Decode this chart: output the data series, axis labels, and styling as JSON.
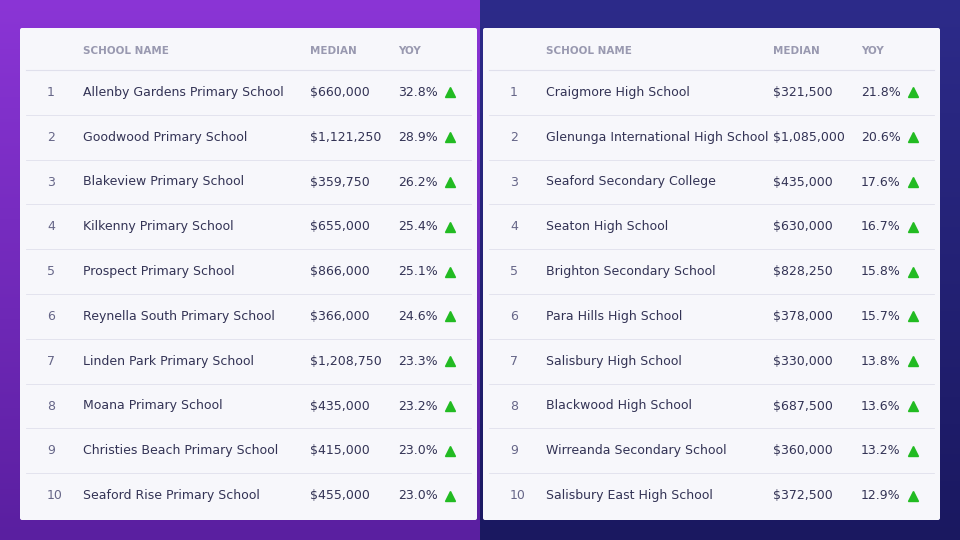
{
  "primary": {
    "ranks": [
      1,
      2,
      3,
      4,
      5,
      6,
      7,
      8,
      9,
      10
    ],
    "names": [
      "Allenby Gardens Primary School",
      "Goodwood Primary School",
      "Blakeview Primary School",
      "Kilkenny Primary School",
      "Prospect Primary School",
      "Reynella South Primary School",
      "Linden Park Primary School",
      "Moana Primary School",
      "Christies Beach Primary School",
      "Seaford Rise Primary School"
    ],
    "medians": [
      "$660,000",
      "$1,121,250",
      "$359,750",
      "$655,000",
      "$866,000",
      "$366,000",
      "$1,208,750",
      "$435,000",
      "$415,000",
      "$455,000"
    ],
    "yoys": [
      "32.8%",
      "28.9%",
      "26.2%",
      "25.4%",
      "25.1%",
      "24.6%",
      "23.3%",
      "23.2%",
      "23.0%",
      "23.0%"
    ]
  },
  "secondary": {
    "ranks": [
      1,
      2,
      3,
      4,
      5,
      6,
      7,
      8,
      9,
      10
    ],
    "names": [
      "Craigmore High School",
      "Glenunga International High School",
      "Seaford Secondary College",
      "Seaton High School",
      "Brighton Secondary School",
      "Para Hills High School",
      "Salisbury High School",
      "Blackwood High School",
      "Wirreanda Secondary School",
      "Salisbury East High School"
    ],
    "medians": [
      "$321,500",
      "$1,085,000",
      "$435,000",
      "$630,000",
      "$828,250",
      "$378,000",
      "$330,000",
      "$687,500",
      "$360,000",
      "$372,500"
    ],
    "yoys": [
      "21.8%",
      "20.6%",
      "17.6%",
      "16.7%",
      "15.8%",
      "15.7%",
      "13.8%",
      "13.6%",
      "13.2%",
      "12.9%"
    ]
  },
  "header_color": "#9999b0",
  "rank_color": "#666688",
  "name_color": "#333355",
  "arrow_color": "#22bb22",
  "table_bg": "#f7f7fb",
  "row_line_color": "#e0e0ec",
  "bg_left_top": "#8b35d6",
  "bg_left_bottom": "#5a1fa0",
  "bg_right_top": "#2d2b8a",
  "bg_right_bottom": "#1a1860"
}
